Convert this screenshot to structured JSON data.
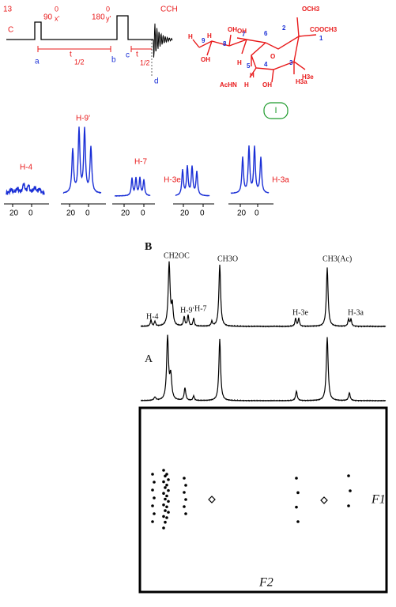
{
  "pulse_sequence": {
    "nucleus_mass": "13",
    "nucleus": "C",
    "pulse1": {
      "angle": "90",
      "degree": "0",
      "phase": "x'"
    },
    "pulse2": {
      "angle": "180",
      "degree": "0",
      "phase": "y'"
    },
    "detection": "CCH",
    "points": [
      "a",
      "b",
      "c",
      "d"
    ],
    "delay1": {
      "symbol": "t",
      "sub": "1/2"
    },
    "delay2": {
      "symbol": "t",
      "sub": "1/2"
    }
  },
  "molecule": {
    "labels": [
      "OCH3",
      "2",
      "COOCH3",
      "1",
      "6",
      "O",
      "7",
      "8",
      "9",
      "H",
      "OH",
      "OH",
      "H",
      "H",
      "AcHN",
      "5",
      "H",
      "4",
      "OH",
      "3",
      "H3e",
      "H3a",
      "H",
      "OH"
    ],
    "compound": "I"
  },
  "multiplets": [
    {
      "label": "H-4",
      "axis": [
        "20",
        "0"
      ]
    },
    {
      "label": "H-9'",
      "axis": [
        "20",
        "0"
      ]
    },
    {
      "label": "H-7",
      "axis": [
        "20",
        "0"
      ]
    },
    {
      "label": "H-3e",
      "axis": [
        "20",
        "0"
      ]
    },
    {
      "label": "H-3a",
      "axis": [
        "20",
        "0"
      ]
    }
  ],
  "spectrum_b": {
    "label": "B",
    "peaks": [
      "CH2OC",
      "CH3O",
      "CH3(Ac)",
      "H-4",
      "H-9'",
      "H-7",
      "H-3e",
      "H-3a"
    ]
  },
  "spectrum_a": {
    "label": "A"
  },
  "map": {
    "f1": "F1",
    "f2": "F2"
  }
}
